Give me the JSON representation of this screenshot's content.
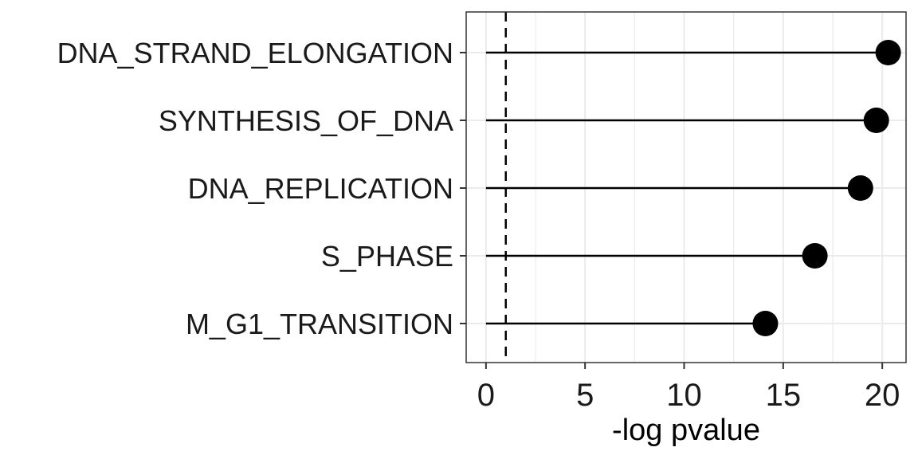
{
  "chart_data": {
    "type": "lollipop",
    "categories": [
      "DNA_STRAND_ELONGATION",
      "SYNTHESIS_OF_DNA",
      "DNA_REPLICATION",
      "S_PHASE",
      "M_G1_TRANSITION"
    ],
    "values": [
      20.3,
      19.7,
      18.9,
      16.6,
      14.1
    ],
    "xlabel": "-log pvalue",
    "ylabel": "",
    "xlim": [
      -1,
      21.2
    ],
    "xticks": [
      "0",
      "5",
      "10",
      "15",
      "20"
    ],
    "xtick_values": [
      0,
      5,
      10,
      15,
      20
    ],
    "reference_line": 1.0,
    "grid": true,
    "colors": {
      "marker": "#000000",
      "grid": "#ebebeb",
      "frame": "#333333"
    }
  }
}
